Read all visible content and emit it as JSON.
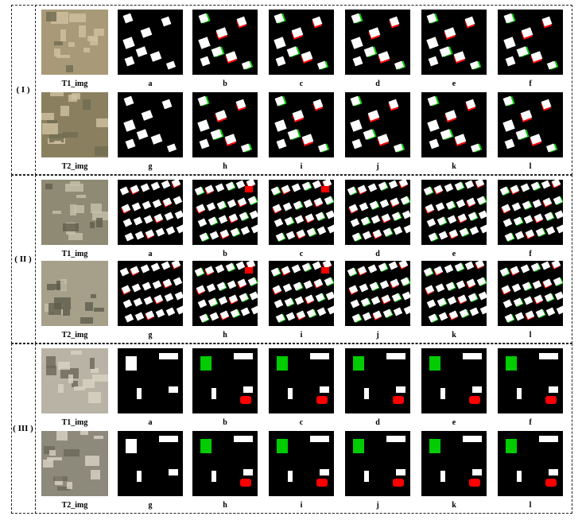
{
  "groups": [
    {
      "label": "( I )",
      "rows": [
        {
          "image_label": "T1_img",
          "panels": [
            "a",
            "b",
            "c",
            "d",
            "e",
            "f"
          ]
        },
        {
          "image_label": "T2_img",
          "panels": [
            "g",
            "h",
            "i",
            "j",
            "k",
            "l"
          ]
        }
      ]
    },
    {
      "label": "( II )",
      "rows": [
        {
          "image_label": "T1_img",
          "panels": [
            "a",
            "b",
            "c",
            "d",
            "e",
            "f"
          ]
        },
        {
          "image_label": "T2_img",
          "panels": [
            "g",
            "h",
            "i",
            "j",
            "k",
            "l"
          ]
        }
      ]
    },
    {
      "label": "( III )",
      "rows": [
        {
          "image_label": "T1_img",
          "panels": [
            "a",
            "b",
            "c",
            "d",
            "e",
            "f"
          ]
        },
        {
          "image_label": "T2_img",
          "panels": [
            "g",
            "h",
            "i",
            "j",
            "k",
            "l"
          ]
        }
      ]
    }
  ],
  "colors": {
    "true_positive": "#ffffff",
    "false_positive": "#ff0000",
    "false_negative": "#00cc00",
    "background": "#000000"
  }
}
